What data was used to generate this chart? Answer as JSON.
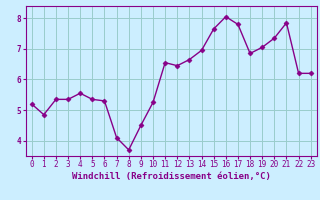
{
  "x": [
    0,
    1,
    2,
    3,
    4,
    5,
    6,
    7,
    8,
    9,
    10,
    11,
    12,
    13,
    14,
    15,
    16,
    17,
    18,
    19,
    20,
    21,
    22,
    23
  ],
  "y": [
    5.2,
    4.85,
    5.35,
    5.35,
    5.55,
    5.35,
    5.3,
    4.1,
    3.7,
    4.5,
    5.25,
    6.55,
    6.45,
    6.65,
    6.95,
    7.65,
    8.05,
    7.8,
    6.85,
    7.05,
    7.35,
    7.85,
    6.2,
    6.2
  ],
  "line_color": "#880088",
  "marker": "D",
  "marker_size": 2.5,
  "bg_color": "#cceeff",
  "grid_color": "#99cccc",
  "xlabel": "Windchill (Refroidissement éolien,°C)",
  "ylabel": "",
  "ylim": [
    3.5,
    8.4
  ],
  "xlim": [
    -0.5,
    23.5
  ],
  "yticks": [
    4,
    5,
    6,
    7,
    8
  ],
  "xtick_labels": [
    "0",
    "1",
    "2",
    "3",
    "4",
    "5",
    "6",
    "7",
    "8",
    "9",
    "10",
    "11",
    "12",
    "13",
    "14",
    "15",
    "16",
    "17",
    "18",
    "19",
    "20",
    "21",
    "22",
    "23"
  ],
  "xlabel_color": "#880088",
  "tick_color": "#880088",
  "spine_color": "#880088",
  "font_size_xlabel": 6.5,
  "font_size_tick": 5.5,
  "linewidth": 1.0
}
